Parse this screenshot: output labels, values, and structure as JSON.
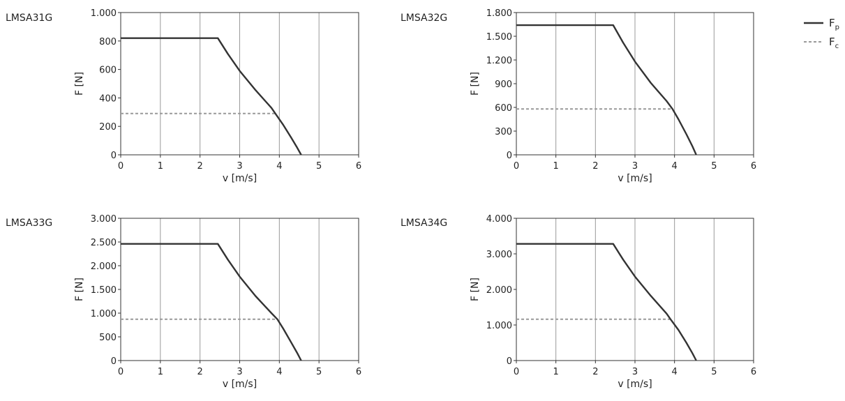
{
  "legend": {
    "placement": "top-right",
    "entries": [
      {
        "label": "F",
        "sub": "p",
        "style": "solid",
        "color": "#333333"
      },
      {
        "label": "F",
        "sub": "c",
        "style": "dashed",
        "color": "#999999"
      }
    ]
  },
  "colors": {
    "fp": "#333333",
    "fc": "#999999",
    "grid": "#999999",
    "axis": "#333333"
  },
  "chart_data": [
    {
      "type": "line",
      "title": "LMSA31G",
      "xlabel": "v [m/s]",
      "ylabel": "F [N]",
      "xlim": [
        0,
        6
      ],
      "ylim": [
        0,
        1000
      ],
      "xticks": [
        0,
        1,
        2,
        3,
        4,
        5,
        6
      ],
      "xtick_labels": [
        "0",
        "1",
        "2",
        "3",
        "4",
        "5",
        "6"
      ],
      "yticks": [
        0,
        200,
        400,
        600,
        800,
        1000
      ],
      "ytick_labels": [
        "0",
        "200",
        "400",
        "600",
        "800",
        "1.000"
      ],
      "grid": "vertical",
      "series": [
        {
          "name": "Fp",
          "style": "solid",
          "x": [
            0,
            2.45,
            2.7,
            3.0,
            3.4,
            3.8,
            3.9,
            4.1,
            4.3,
            4.45,
            4.55
          ],
          "y": [
            820,
            820,
            710,
            590,
            455,
            330,
            290,
            210,
            120,
            50,
            0
          ]
        },
        {
          "name": "Fc",
          "style": "dashed",
          "x": [
            0,
            3.9,
            4.1,
            4.3,
            4.45,
            4.55
          ],
          "y": [
            290,
            290,
            210,
            120,
            50,
            0
          ]
        }
      ]
    },
    {
      "type": "line",
      "title": "LMSA32G",
      "xlabel": "v [m/s]",
      "ylabel": "F [N]",
      "xlim": [
        0,
        6
      ],
      "ylim": [
        0,
        1800
      ],
      "xticks": [
        0,
        1,
        2,
        3,
        4,
        5,
        6
      ],
      "xtick_labels": [
        "0",
        "1",
        "2",
        "3",
        "4",
        "5",
        "6"
      ],
      "yticks": [
        0,
        300,
        600,
        900,
        1200,
        1500,
        1800
      ],
      "ytick_labels": [
        "0",
        "300",
        "600",
        "900",
        "1.200",
        "1.500",
        "1.800"
      ],
      "grid": "vertical",
      "series": [
        {
          "name": "Fp",
          "style": "solid",
          "x": [
            0,
            2.45,
            2.7,
            3.0,
            3.4,
            3.8,
            3.95,
            4.1,
            4.3,
            4.45,
            4.55
          ],
          "y": [
            1640,
            1640,
            1420,
            1180,
            910,
            680,
            580,
            450,
            260,
            110,
            0
          ]
        },
        {
          "name": "Fc",
          "style": "dashed",
          "x": [
            0,
            3.95,
            4.1,
            4.3,
            4.45,
            4.55
          ],
          "y": [
            580,
            580,
            450,
            260,
            110,
            0
          ]
        }
      ]
    },
    {
      "type": "line",
      "title": "LMSA33G",
      "xlabel": "v [m/s]",
      "ylabel": "F [N]",
      "xlim": [
        0,
        6
      ],
      "ylim": [
        0,
        3000
      ],
      "xticks": [
        0,
        1,
        2,
        3,
        4,
        5,
        6
      ],
      "xtick_labels": [
        "0",
        "1",
        "2",
        "3",
        "4",
        "5",
        "6"
      ],
      "yticks": [
        0,
        500,
        1000,
        1500,
        2000,
        2500,
        3000
      ],
      "ytick_labels": [
        "0",
        "500",
        "1.000",
        "1.500",
        "2.000",
        "2.500",
        "3.000"
      ],
      "grid": "vertical",
      "series": [
        {
          "name": "Fp",
          "style": "solid",
          "x": [
            0,
            2.45,
            2.7,
            3.0,
            3.4,
            3.8,
            3.95,
            4.1,
            4.3,
            4.45,
            4.55
          ],
          "y": [
            2460,
            2460,
            2130,
            1770,
            1360,
            1000,
            870,
            670,
            380,
            160,
            0
          ]
        },
        {
          "name": "Fc",
          "style": "dashed",
          "x": [
            0,
            3.95,
            4.1,
            4.3,
            4.45,
            4.55
          ],
          "y": [
            870,
            870,
            670,
            380,
            160,
            0
          ]
        }
      ]
    },
    {
      "type": "line",
      "title": "LMSA34G",
      "xlabel": "v [m/s]",
      "ylabel": "F [N]",
      "xlim": [
        0,
        6
      ],
      "ylim": [
        0,
        4000
      ],
      "xticks": [
        0,
        1,
        2,
        3,
        4,
        5,
        6
      ],
      "xtick_labels": [
        "0",
        "1",
        "2",
        "3",
        "4",
        "5",
        "6"
      ],
      "yticks": [
        0,
        1000,
        2000,
        3000,
        4000
      ],
      "ytick_labels": [
        "0",
        "1.000",
        "2.000",
        "3.000",
        "4.000"
      ],
      "grid": "vertical",
      "series": [
        {
          "name": "Fp",
          "style": "solid",
          "x": [
            0,
            2.45,
            2.7,
            3.0,
            3.4,
            3.8,
            3.9,
            4.1,
            4.3,
            4.45,
            4.55
          ],
          "y": [
            3280,
            3280,
            2840,
            2360,
            1820,
            1320,
            1160,
            860,
            500,
            210,
            0
          ]
        },
        {
          "name": "Fc",
          "style": "dashed",
          "x": [
            0,
            3.9,
            4.1,
            4.3,
            4.45,
            4.55
          ],
          "y": [
            1160,
            1160,
            860,
            500,
            210,
            0
          ]
        }
      ]
    }
  ]
}
